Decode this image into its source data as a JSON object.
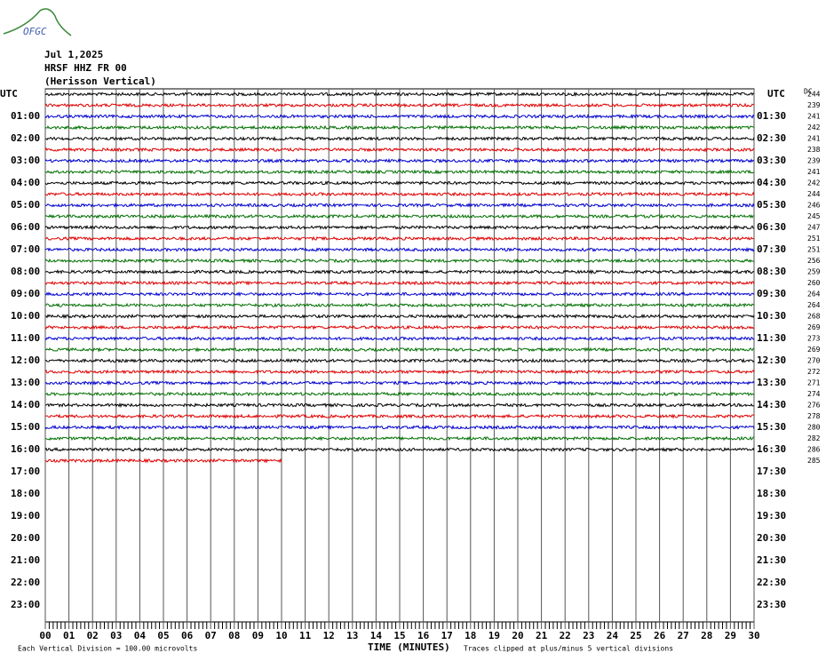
{
  "logo": "OFGC",
  "header": {
    "date": "Jul 1,2025",
    "station": "HRSF HHZ FR 00",
    "name": "(Herisson Vertical)"
  },
  "left_labels": [
    "UTC",
    "01:00",
    "02:00",
    "03:00",
    "04:00",
    "05:00",
    "06:00",
    "07:00",
    "08:00",
    "09:00",
    "10:00",
    "11:00",
    "12:00",
    "13:00",
    "14:00",
    "15:00",
    "16:00",
    "17:00",
    "18:00",
    "19:00",
    "20:00",
    "21:00",
    "22:00",
    "23:00"
  ],
  "right_labels": [
    "UTC",
    "01:30",
    "02:30",
    "03:30",
    "04:30",
    "05:30",
    "06:30",
    "07:30",
    "08:30",
    "09:30",
    "10:30",
    "11:30",
    "12:30",
    "13:30",
    "14:30",
    "15:30",
    "16:30",
    "17:30",
    "18:30",
    "19:30",
    "20:30",
    "21:30",
    "22:30",
    "23:30"
  ],
  "dc_label": "DC",
  "dc_values": [
    "244",
    "239",
    "241",
    "242",
    "241",
    "238",
    "239",
    "241",
    "242",
    "244",
    "246",
    "245",
    "247",
    "251",
    "251",
    "256",
    "259",
    "260",
    "264",
    "264",
    "268",
    "269",
    "273",
    "269",
    "270",
    "272",
    "271",
    "274",
    "276",
    "278",
    "280",
    "282",
    "286",
    "285"
  ],
  "x_labels": [
    "00",
    "01",
    "02",
    "03",
    "04",
    "05",
    "06",
    "07",
    "08",
    "09",
    "10",
    "11",
    "12",
    "13",
    "14",
    "15",
    "16",
    "17",
    "18",
    "19",
    "20",
    "21",
    "22",
    "23",
    "24",
    "25",
    "26",
    "27",
    "28",
    "29",
    "30"
  ],
  "footer": {
    "scale": "Each Vertical Division =  100.00 microvolts",
    "axis_title": "TIME (MINUTES)",
    "clip": "Traces clipped at plus/minus 5 vertical divisions"
  }
}
